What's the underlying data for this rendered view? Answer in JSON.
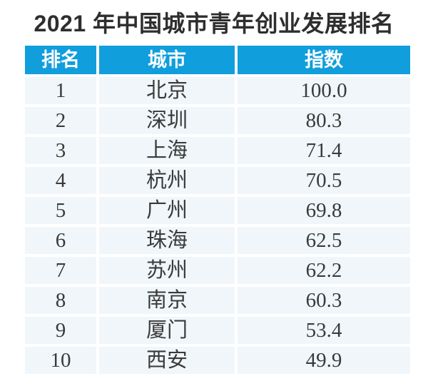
{
  "title": "2021 年中国城市青年创业发展排名",
  "colors": {
    "header_bg": "#109EDC",
    "row_bg": "#F0F6FA",
    "header_text": "#FFFFFF",
    "body_text": "#3A3A3A",
    "title_text": "#2E2E2E"
  },
  "table": {
    "headers": [
      "排名",
      "城市",
      "指数"
    ],
    "rows": [
      {
        "rank": "1",
        "city": "北京",
        "index": "100.0"
      },
      {
        "rank": "2",
        "city": "深圳",
        "index": "80.3"
      },
      {
        "rank": "3",
        "city": "上海",
        "index": "71.4"
      },
      {
        "rank": "4",
        "city": "杭州",
        "index": "70.5"
      },
      {
        "rank": "5",
        "city": "广州",
        "index": "69.8"
      },
      {
        "rank": "6",
        "city": "珠海",
        "index": "62.5"
      },
      {
        "rank": "7",
        "city": "苏州",
        "index": "62.2"
      },
      {
        "rank": "8",
        "city": "南京",
        "index": "60.3"
      },
      {
        "rank": "9",
        "city": "厦门",
        "index": "53.4"
      },
      {
        "rank": "10",
        "city": "西安",
        "index": "49.9"
      }
    ]
  },
  "chart_data": {
    "type": "table",
    "title": "2021 年中国城市青年创业发展排名",
    "columns": [
      "排名",
      "城市",
      "指数"
    ],
    "rows": [
      [
        1,
        "北京",
        100.0
      ],
      [
        2,
        "深圳",
        80.3
      ],
      [
        3,
        "上海",
        71.4
      ],
      [
        4,
        "杭州",
        70.5
      ],
      [
        5,
        "广州",
        69.8
      ],
      [
        6,
        "珠海",
        62.5
      ],
      [
        7,
        "苏州",
        62.2
      ],
      [
        8,
        "南京",
        60.3
      ],
      [
        9,
        "厦门",
        53.4
      ],
      [
        10,
        "西安",
        49.9
      ]
    ],
    "value_range": [
      49.9,
      100.0
    ],
    "layout": "header row blue, body rows light blue, white gaps as separators, all cells center-aligned"
  }
}
